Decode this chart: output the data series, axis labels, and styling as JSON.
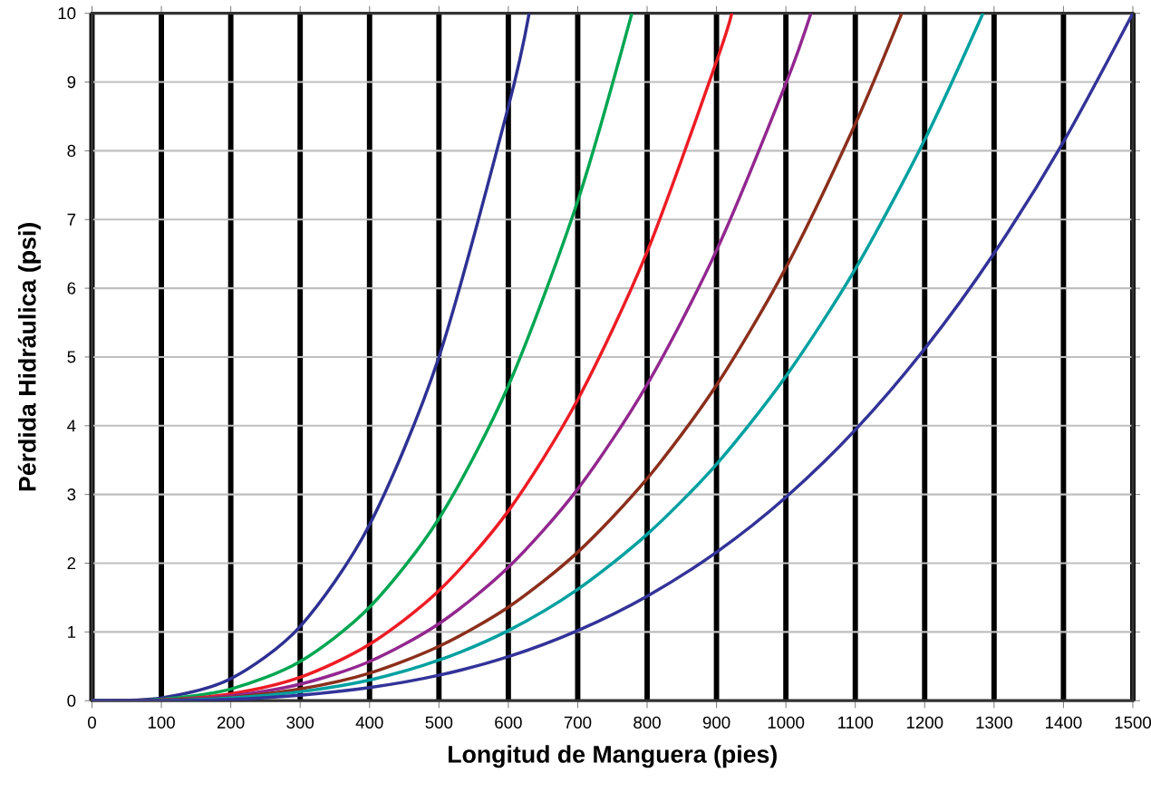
{
  "chart_data": {
    "type": "line",
    "xlabel": "Longitud de Manguera (pies)",
    "ylabel": "Pérdida Hidráulica (psi)",
    "xlim": [
      0,
      1500
    ],
    "ylim": [
      0,
      10
    ],
    "xticks": [
      0,
      100,
      200,
      300,
      400,
      500,
      600,
      700,
      800,
      900,
      1000,
      1100,
      1200,
      1300,
      1400,
      1500
    ],
    "yticks": [
      0,
      1,
      2,
      3,
      4,
      5,
      6,
      7,
      8,
      9,
      10
    ],
    "grid": true,
    "marker": "none",
    "line_style": "solid",
    "series": [
      {
        "color": "#2e3192",
        "x": [
          0,
          100,
          200,
          300,
          400,
          500,
          600,
          630
        ],
        "values": [
          0,
          0.04,
          0.32,
          1.08,
          2.56,
          5.0,
          8.64,
          10
        ]
      },
      {
        "color": "#00a651",
        "x": [
          0,
          100,
          200,
          300,
          400,
          500,
          600,
          700,
          778
        ],
        "values": [
          0,
          0.02,
          0.17,
          0.57,
          1.36,
          2.65,
          4.58,
          7.27,
          10
        ]
      },
      {
        "color": "#ed1c24",
        "x": [
          0,
          100,
          200,
          300,
          400,
          500,
          600,
          700,
          800,
          900,
          922
        ],
        "values": [
          0,
          0.01,
          0.1,
          0.34,
          0.82,
          1.6,
          2.76,
          4.38,
          6.53,
          9.3,
          10
        ]
      },
      {
        "color": "#92278f",
        "x": [
          0,
          100,
          200,
          300,
          400,
          500,
          600,
          700,
          800,
          900,
          1000,
          1036
        ],
        "values": [
          0,
          0.01,
          0.07,
          0.24,
          0.57,
          1.12,
          1.94,
          3.08,
          4.6,
          6.55,
          8.98,
          10
        ]
      },
      {
        "color": "#8b2f1c",
        "x": [
          0,
          100,
          200,
          300,
          400,
          500,
          600,
          700,
          800,
          900,
          1000,
          1100,
          1167
        ],
        "values": [
          0,
          0.01,
          0.05,
          0.17,
          0.4,
          0.79,
          1.36,
          2.16,
          3.23,
          4.59,
          6.3,
          8.39,
          10
        ]
      },
      {
        "color": "#00a0a0",
        "x": [
          0,
          100,
          200,
          300,
          400,
          500,
          600,
          700,
          800,
          900,
          1000,
          1100,
          1200,
          1284
        ],
        "values": [
          0,
          0,
          0.04,
          0.13,
          0.3,
          0.59,
          1.02,
          1.62,
          2.42,
          3.44,
          4.72,
          6.28,
          8.16,
          10
        ]
      },
      {
        "color": "#333399",
        "x": [
          0,
          100,
          200,
          300,
          400,
          500,
          600,
          700,
          800,
          900,
          1000,
          1100,
          1200,
          1300,
          1400,
          1500
        ],
        "values": [
          0,
          0,
          0.02,
          0.08,
          0.19,
          0.37,
          0.64,
          1.02,
          1.52,
          2.16,
          2.96,
          3.94,
          5.12,
          6.51,
          8.13,
          10
        ]
      }
    ]
  }
}
